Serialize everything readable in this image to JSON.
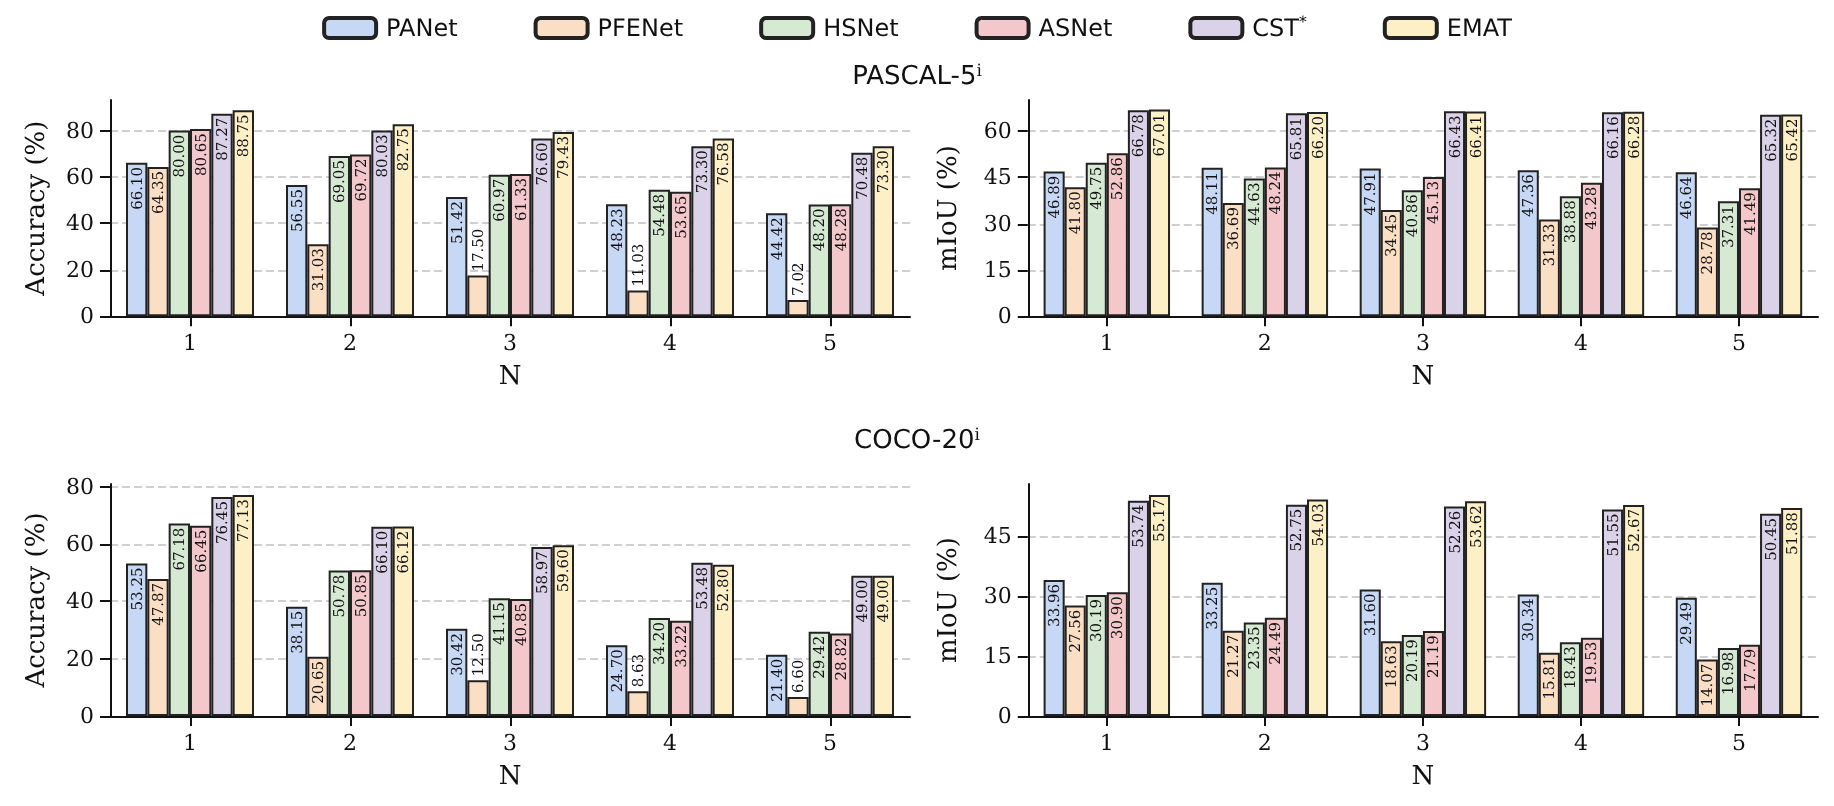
{
  "chart_data": [
    {
      "type": "bar",
      "title": "PASCAL-5$^{i}$",
      "categories": [
        "1",
        "2",
        "3",
        "4",
        "5"
      ],
      "xlabel": "N",
      "ylabel": "Accuracy (%)",
      "ylim": [
        0,
        93.2
      ],
      "yticks": [
        0,
        20,
        40,
        60,
        80
      ],
      "grid": "y",
      "legend": "top",
      "series": [
        {
          "name": "PANet",
          "color": "#c6d8f5",
          "values": [
            66.1,
            56.55,
            51.42,
            48.23,
            44.42
          ],
          "value_labels": [
            "66.10",
            "56.55",
            "51.42",
            "48.23",
            "44.42"
          ]
        },
        {
          "name": "PFENet",
          "color": "#fbdfc4",
          "values": [
            64.35,
            31.03,
            17.5,
            11.03,
            7.02
          ],
          "value_labels": [
            "64.35",
            "31.03",
            "17.50",
            "11.03",
            "7.02"
          ]
        },
        {
          "name": "HSNet",
          "color": "#d6ead3",
          "values": [
            80.0,
            69.05,
            60.97,
            54.48,
            48.2
          ],
          "value_labels": [
            "80.00",
            "69.05",
            "60.97",
            "54.48",
            "48.20"
          ]
        },
        {
          "name": "ASNet",
          "color": "#f4c8ca",
          "values": [
            80.65,
            69.72,
            61.33,
            53.65,
            48.28
          ],
          "value_labels": [
            "80.65",
            "69.72",
            "61.33",
            "53.65",
            "48.28"
          ]
        },
        {
          "name": "CST$^{*}$",
          "color": "#dad2e9",
          "values": [
            87.27,
            80.03,
            76.6,
            73.3,
            70.48
          ],
          "value_labels": [
            "87.27",
            "80.03",
            "76.60",
            "73.30",
            "70.48"
          ]
        },
        {
          "name": "EMAT",
          "color": "#fdf0c7",
          "values": [
            88.75,
            82.75,
            79.43,
            76.58,
            73.3
          ],
          "value_labels": [
            "88.75",
            "82.75",
            "79.43",
            "76.58",
            "73.30"
          ]
        }
      ]
    },
    {
      "type": "bar",
      "categories": [
        "1",
        "2",
        "3",
        "4",
        "5"
      ],
      "xlabel": "N",
      "ylabel": "mIoU (%)",
      "ylim": [
        0,
        70.1
      ],
      "yticks": [
        0,
        15,
        30,
        45,
        60
      ],
      "grid": "y",
      "series": [
        {
          "color": "#c6d8f5",
          "values": [
            46.89,
            48.11,
            47.91,
            47.36,
            46.64
          ],
          "value_labels": [
            "46.89",
            "48.11",
            "47.91",
            "47.36",
            "46.64"
          ]
        },
        {
          "color": "#fbdfc4",
          "values": [
            41.8,
            36.69,
            34.45,
            31.33,
            28.78
          ],
          "value_labels": [
            "41.80",
            "36.69",
            "34.45",
            "31.33",
            "28.78"
          ]
        },
        {
          "color": "#d6ead3",
          "values": [
            49.75,
            44.63,
            40.86,
            38.88,
            37.31
          ],
          "value_labels": [
            "49.75",
            "44.63",
            "40.86",
            "38.88",
            "37.31"
          ]
        },
        {
          "color": "#f4c8ca",
          "values": [
            52.86,
            48.24,
            45.13,
            43.28,
            41.49
          ],
          "value_labels": [
            "52.86",
            "48.24",
            "45.13",
            "43.28",
            "41.49"
          ]
        },
        {
          "color": "#dad2e9",
          "values": [
            66.78,
            65.81,
            66.43,
            66.16,
            65.32
          ],
          "value_labels": [
            "66.78",
            "65.81",
            "66.43",
            "66.16",
            "65.32"
          ]
        },
        {
          "color": "#fdf0c7",
          "values": [
            67.01,
            66.2,
            66.41,
            66.28,
            65.42
          ],
          "value_labels": [
            "67.01",
            "66.20",
            "66.41",
            "66.28",
            "65.42"
          ]
        }
      ]
    },
    {
      "type": "bar",
      "title": "COCO-20$^{i}$",
      "categories": [
        "1",
        "2",
        "3",
        "4",
        "5"
      ],
      "xlabel": "N",
      "ylabel": "Accuracy (%)",
      "ylim": [
        0,
        81
      ],
      "yticks": [
        0,
        20,
        40,
        60,
        80
      ],
      "grid": "y",
      "series": [
        {
          "color": "#c6d8f5",
          "values": [
            53.25,
            38.15,
            30.42,
            24.7,
            21.4
          ],
          "value_labels": [
            "53.25",
            "38.15",
            "30.42",
            "24.70",
            "21.40"
          ]
        },
        {
          "color": "#fbdfc4",
          "values": [
            47.87,
            20.65,
            12.5,
            8.63,
            6.6
          ],
          "value_labels": [
            "47.87",
            "20.65",
            "12.50",
            "8.63",
            "6.60"
          ]
        },
        {
          "color": "#d6ead3",
          "values": [
            67.18,
            50.78,
            41.15,
            34.2,
            29.42
          ],
          "value_labels": [
            "67.18",
            "50.78",
            "41.15",
            "34.20",
            "29.42"
          ]
        },
        {
          "color": "#f4c8ca",
          "values": [
            66.45,
            50.85,
            40.85,
            33.22,
            28.82
          ],
          "value_labels": [
            "66.45",
            "50.85",
            "40.85",
            "33.22",
            "28.82"
          ]
        },
        {
          "color": "#dad2e9",
          "values": [
            76.45,
            66.1,
            58.97,
            53.48,
            49.0
          ],
          "value_labels": [
            "76.45",
            "66.10",
            "58.97",
            "53.48",
            "49.00"
          ]
        },
        {
          "color": "#fdf0c7",
          "values": [
            77.13,
            66.12,
            59.6,
            52.8,
            49.0
          ],
          "value_labels": [
            "77.13",
            "66.12",
            "59.60",
            "52.80",
            "49.00"
          ]
        }
      ]
    },
    {
      "type": "bar",
      "categories": [
        "1",
        "2",
        "3",
        "4",
        "5"
      ],
      "xlabel": "N",
      "ylabel": "mIoU (%)",
      "ylim": [
        0,
        57.9
      ],
      "yticks": [
        0,
        15,
        30,
        45
      ],
      "grid": "y",
      "series": [
        {
          "color": "#c6d8f5",
          "values": [
            33.96,
            33.25,
            31.6,
            30.34,
            29.49
          ],
          "value_labels": [
            "33.96",
            "33.25",
            "31.60",
            "30.34",
            "29.49"
          ]
        },
        {
          "color": "#fbdfc4",
          "values": [
            27.56,
            21.27,
            18.63,
            15.81,
            14.07
          ],
          "value_labels": [
            "27.56",
            "21.27",
            "18.63",
            "15.81",
            "14.07"
          ]
        },
        {
          "color": "#d6ead3",
          "values": [
            30.19,
            23.35,
            20.19,
            18.43,
            16.98
          ],
          "value_labels": [
            "30.19",
            "23.35",
            "20.19",
            "18.43",
            "16.98"
          ]
        },
        {
          "color": "#f4c8ca",
          "values": [
            30.9,
            24.49,
            21.19,
            19.53,
            17.79
          ],
          "value_labels": [
            "30.90",
            "24.49",
            "21.19",
            "19.53",
            "17.79"
          ]
        },
        {
          "color": "#dad2e9",
          "values": [
            53.74,
            52.75,
            52.26,
            51.55,
            50.45
          ],
          "value_labels": [
            "53.74",
            "52.75",
            "52.26",
            "51.55",
            "50.45"
          ]
        },
        {
          "color": "#fdf0c7",
          "values": [
            55.17,
            54.03,
            53.62,
            52.67,
            51.88
          ],
          "value_labels": [
            "55.17",
            "54.03",
            "53.62",
            "52.67",
            "51.88"
          ]
        }
      ]
    }
  ]
}
